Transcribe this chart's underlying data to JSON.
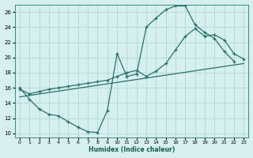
{
  "title": "",
  "xlabel": "Humidex (Indice chaleur)",
  "bg_color": "#d6f0ef",
  "grid_color": "#b8dada",
  "line_color": "#2a7068",
  "xlim": [
    -0.5,
    23.5
  ],
  "ylim": [
    9.5,
    27.0
  ],
  "xticks": [
    0,
    1,
    2,
    3,
    4,
    5,
    6,
    7,
    8,
    9,
    10,
    11,
    12,
    13,
    14,
    15,
    16,
    17,
    18,
    19,
    20,
    21,
    22,
    23
  ],
  "yticks": [
    10,
    12,
    14,
    16,
    18,
    20,
    22,
    24,
    26
  ],
  "curve1_x": [
    0,
    1,
    2,
    3,
    4,
    5,
    6,
    7,
    8,
    9,
    10,
    11,
    12,
    13,
    14,
    15,
    16,
    17,
    18,
    19,
    20,
    21,
    22
  ],
  "curve1_y": [
    16.0,
    14.5,
    13.2,
    12.5,
    12.3,
    11.5,
    10.8,
    10.2,
    10.1,
    13.0,
    20.5,
    17.5,
    17.8,
    24.0,
    25.2,
    26.3,
    26.8,
    26.8,
    24.3,
    23.3,
    22.5,
    20.8,
    19.5
  ],
  "curve2_x": [
    0,
    23
  ],
  "curve2_y": [
    14.8,
    19.2
  ],
  "curve3_x": [
    0,
    1,
    2,
    3,
    4,
    5,
    6,
    7,
    8,
    9,
    10,
    11,
    12,
    13,
    14,
    15,
    16,
    17,
    18,
    19,
    20,
    21,
    22,
    23
  ],
  "curve3_y": [
    15.8,
    15.2,
    15.5,
    15.8,
    16.0,
    16.2,
    16.4,
    16.6,
    16.8,
    17.0,
    17.5,
    18.0,
    18.3,
    17.5,
    18.2,
    19.2,
    21.0,
    22.8,
    23.8,
    22.8,
    23.0,
    22.3,
    20.5,
    19.8
  ]
}
